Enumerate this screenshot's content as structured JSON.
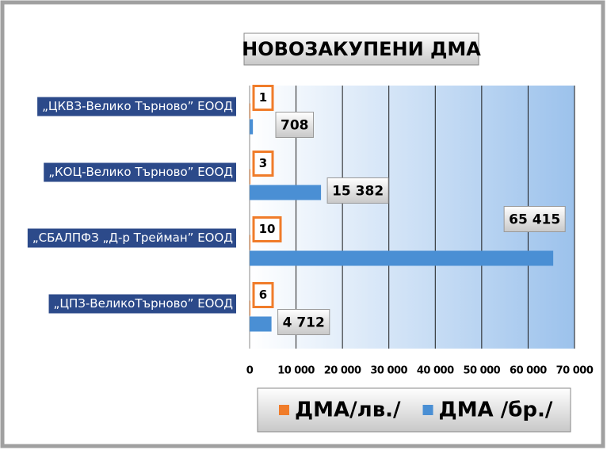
{
  "chart_data": {
    "type": "bar",
    "orientation": "horizontal",
    "title": "НОВОЗАКУПЕНИ ДМА",
    "categories": [
      "„ЦКВЗ-Велико Търново” ЕООД",
      "„КОЦ-Велико Търново” ЕООД",
      "„СБАЛПФЗ „Д-р Трейман” ЕООД",
      "„ЦПЗ-ВеликоТърново” ЕООД"
    ],
    "series": [
      {
        "name": "ДМА/лв./",
        "color": "#f07c2a",
        "values": [
          1,
          3,
          10,
          6
        ]
      },
      {
        "name": "ДМА /бр./",
        "color": "#4a8fd4",
        "values": [
          708,
          15382,
          65415,
          4712
        ],
        "value_labels": [
          "708",
          "15 382",
          "65 415",
          "4 712"
        ]
      }
    ],
    "xlim": [
      0,
      70000
    ],
    "xticks": [
      0,
      {
        "value": 10000,
        "label": "10 000"
      },
      {
        "value": 20000,
        "label": "20 000"
      },
      {
        "value": 30000,
        "label": "30 000"
      },
      {
        "value": 40000,
        "label": "40 000"
      },
      {
        "value": 50000,
        "label": "50 000"
      },
      {
        "value": 60000,
        "label": "60 000"
      },
      {
        "value": 70000,
        "label": "70 000"
      }
    ],
    "grid": true,
    "legend": "bottom"
  }
}
